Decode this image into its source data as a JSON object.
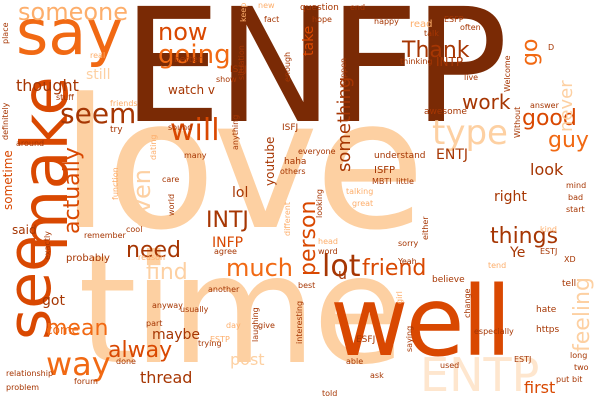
{
  "palette": {
    "darkest": "#7a2a05",
    "dark": "#a63603",
    "mid": "#d94801",
    "orange": "#f16913",
    "light": "#fd8d3c",
    "pale": "#fdae6b",
    "paler": "#fdd0a2",
    "palest": "#fee6ce"
  },
  "words": {
    "enfp": "ENFP",
    "love": "love",
    "time": "time",
    "well": "well",
    "make": "make",
    "say": "say",
    "see": "see",
    "someone": "someone",
    "seem": "seem",
    "now": "now",
    "going": "going",
    "will": "will",
    "thank": "Thank",
    "go": "go",
    "type": "type",
    "good": "good",
    "guy": "guy",
    "work": "work",
    "something": "something",
    "actually": "actually",
    "even": "even",
    "intj": "INTJ",
    "infp": "INFP",
    "need": "need",
    "find": "find",
    "much": "much",
    "lot": "lot",
    "friend": "friend",
    "person": "person",
    "things": "things",
    "thought": "thought",
    "mean": "mean",
    "way": "way",
    "always": "alway",
    "got": "got",
    "come": "come",
    "maybe": "maybe",
    "thread": "thread",
    "right": "right",
    "look": "look",
    "first": "first",
    "entp": "ENTP",
    "feeling": "feeling",
    "never": "never",
    "lol": "lol",
    "youtube": "youtube",
    "watch": "watch v",
    "intp": "INTP",
    "entj": "ENTJ",
    "isfj": "ISFJ",
    "istj": "ISTJ",
    "isfp": "ISFP",
    "mbti": "MBTI",
    "esfj": "ESFJ",
    "estp": "ESTP",
    "estj": "ESTJ",
    "esfp": "ESFP",
    "still": "still",
    "take": "take",
    "said": "said",
    "sometime": "sometime",
    "probably": "probably",
    "post": "post",
    "ye": "Ye",
    "u": "u",
    "question": "question",
    "keep": "keep",
    "new": "new",
    "hope": "hope",
    "fact": "fact",
    "end": "end",
    "happy": "happy",
    "often": "often",
    "read": "read",
    "talk": "talk",
    "thinking": "thinking",
    "live": "live",
    "welcome": "Welcome",
    "answer": "answer",
    "without": "Without",
    "better": "better",
    "show": "show",
    "situation": "situation",
    "enough": "enough",
    "awesome": "awesome",
    "happen": "happen",
    "stuff": "stuff",
    "try": "try",
    "sound": "sound",
    "anything": "anything",
    "definitely": "definitely",
    "place": "place",
    "around": "around",
    "many": "many",
    "haha": "haha",
    "others": "others",
    "everyone": "everyone",
    "understand": "understand",
    "little": "little",
    "care": "care",
    "cool": "cool",
    "world": "world",
    "agree": "agree",
    "word": "word",
    "head": "head",
    "yeah": "Yeah",
    "tend": "tend",
    "sorry": "sorry",
    "believe": "believe",
    "either": "either",
    "change": "change",
    "especially": "especially",
    "tell": "tell",
    "hate": "hate",
    "https": "https",
    "long": "long",
    "two": "two",
    "bit": "bit",
    "put": "put",
    "used": "used",
    "saying": "saying",
    "ask": "ask",
    "told": "told",
    "interesting": "interesting",
    "laughing": "laughing",
    "trying": "trying",
    "done": "done",
    "anyway": "anyway",
    "usually": "usually",
    "part": "part",
    "another": "another",
    "forum": "forum",
    "relationship": "relationship",
    "problem": "problem",
    "remember": "remember",
    "exactly": "exactly",
    "best": "best",
    "able": "able",
    "mind": "mind",
    "bad": "bad",
    "start": "start",
    "xd": "XD",
    "estj2": "ESTJ",
    "give": "give",
    "d": "D",
    "reason": "reason",
    "function": "function",
    "looking": "looking",
    "great": "great",
    "girl": "girl",
    "day": "day",
    "talking": "talking",
    "different": "different",
    "friends": "friends",
    "real": "real",
    "kind": "kind",
    "dating": "dating"
  }
}
